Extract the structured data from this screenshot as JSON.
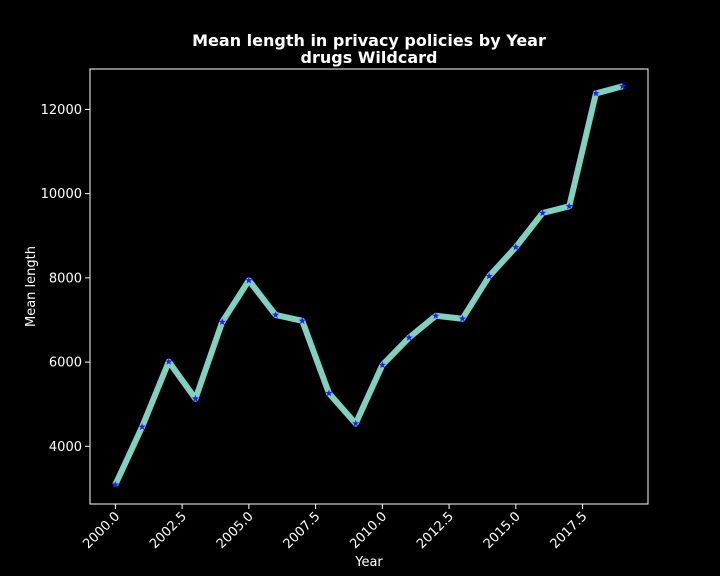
{
  "chart_data": {
    "type": "line",
    "title": "Mean length in privacy policies by Year",
    "subtitle": "drugs Wildcard",
    "xlabel": "Year",
    "ylabel": "Mean length",
    "xlim": [
      1999.05,
      2019.95
    ],
    "ylim": [
      2630,
      12960
    ],
    "x_ticks": [
      2000.0,
      2002.5,
      2005.0,
      2007.5,
      2010.0,
      2012.5,
      2015.0,
      2017.5
    ],
    "x_tick_labels": [
      "2000.0",
      "2002.5",
      "2005.0",
      "2007.5",
      "2010.0",
      "2012.5",
      "2015.0",
      "2017.5"
    ],
    "y_ticks": [
      4000,
      6000,
      8000,
      10000,
      12000
    ],
    "y_tick_labels": [
      "4000",
      "6000",
      "8000",
      "10000",
      "12000"
    ],
    "grid": false,
    "legend": "none",
    "background": "#000000",
    "foreground": "#ffffff",
    "line_color": "#7fd1c0",
    "marker_color": "#1f1fff",
    "marker": "star",
    "series": [
      {
        "x": [
          2000,
          2001,
          2002,
          2003,
          2004,
          2005,
          2006,
          2007,
          2008,
          2009,
          2010,
          2011,
          2012,
          2013,
          2014,
          2015,
          2016,
          2017,
          2018,
          2019
        ],
        "values": [
          3090,
          4460,
          6010,
          5130,
          6950,
          7940,
          7120,
          6980,
          5260,
          4540,
          5930,
          6580,
          7100,
          7030,
          8040,
          8730,
          9540,
          9700,
          12380,
          12550
        ]
      }
    ]
  }
}
